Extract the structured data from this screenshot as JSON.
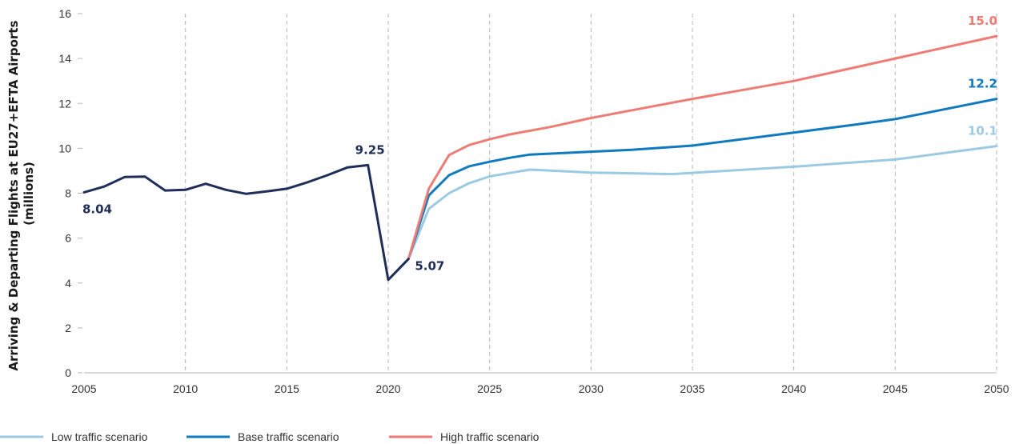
{
  "chart_data": {
    "type": "line",
    "ylabel": "Arriving & Departing Flights at EU27+EFTA Airports (millions)",
    "ylabel_lines": [
      "Arriving & Departing Flights at EU27+EFTA Airports",
      "(millions)"
    ],
    "xlim": [
      2005,
      2050
    ],
    "ylim": [
      0,
      16
    ],
    "x_ticks": [
      "2005",
      "2010",
      "2015",
      "2020",
      "2025",
      "2030",
      "2035",
      "2040",
      "2045",
      "2050"
    ],
    "y_ticks": [
      "0",
      "2",
      "4",
      "6",
      "8",
      "10",
      "12",
      "14",
      "16"
    ],
    "grid": "vertical dashed",
    "legend_position": "bottom-left",
    "series": [
      {
        "name": "Low traffic scenario",
        "color": "#9cc9e3",
        "x": [
          2021,
          2022,
          2023,
          2024,
          2025,
          2026,
          2027,
          2030,
          2034,
          2040,
          2045,
          2050
        ],
        "y": [
          5.07,
          7.3,
          8.0,
          8.45,
          8.75,
          8.9,
          9.05,
          8.92,
          8.85,
          9.18,
          9.5,
          10.1
        ]
      },
      {
        "name": "Base traffic scenario",
        "color": "#0f7ac0",
        "x": [
          2021,
          2022,
          2023,
          2024,
          2025,
          2026,
          2027,
          2030,
          2032,
          2035,
          2040,
          2043,
          2045,
          2050
        ],
        "y": [
          5.07,
          7.9,
          8.8,
          9.2,
          9.4,
          9.58,
          9.72,
          9.85,
          9.93,
          10.12,
          10.7,
          11.05,
          11.3,
          12.2
        ]
      },
      {
        "name": "High traffic scenario",
        "color": "#ef7b75",
        "x": [
          2021,
          2022,
          2023,
          2024,
          2025,
          2026,
          2028,
          2030,
          2035,
          2040,
          2045,
          2050
        ],
        "y": [
          5.07,
          8.2,
          9.7,
          10.15,
          10.4,
          10.62,
          10.95,
          11.35,
          12.2,
          13.0,
          14.0,
          15.0
        ]
      },
      {
        "name": "",
        "color": "#1f2d5a",
        "x": [
          2005,
          2006,
          2007,
          2008,
          2009,
          2010,
          2011,
          2012,
          2013,
          2014,
          2015,
          2016,
          2017,
          2018,
          2019,
          2020,
          2021
        ],
        "y": [
          8.04,
          8.3,
          8.72,
          8.74,
          8.12,
          8.15,
          8.42,
          8.15,
          7.97,
          8.08,
          8.2,
          8.48,
          8.8,
          9.15,
          9.25,
          4.14,
          5.07
        ]
      }
    ],
    "annotations": [
      {
        "text": "8.04",
        "x": 2005,
        "y": 8.04,
        "color": "#1f2d5a"
      },
      {
        "text": "9.25",
        "x": 2019,
        "y": 9.25,
        "color": "#1f2d5a"
      },
      {
        "text": "5.07",
        "x": 2021,
        "y": 5.07,
        "color": "#1f2d5a"
      },
      {
        "text": "15.0",
        "x": 2050,
        "y": 15.0,
        "color": "#ef7b75"
      },
      {
        "text": "12.2",
        "x": 2050,
        "y": 12.2,
        "color": "#0f7ac0"
      },
      {
        "text": "10.1",
        "x": 2050,
        "y": 10.1,
        "color": "#9cc9e3"
      }
    ]
  }
}
